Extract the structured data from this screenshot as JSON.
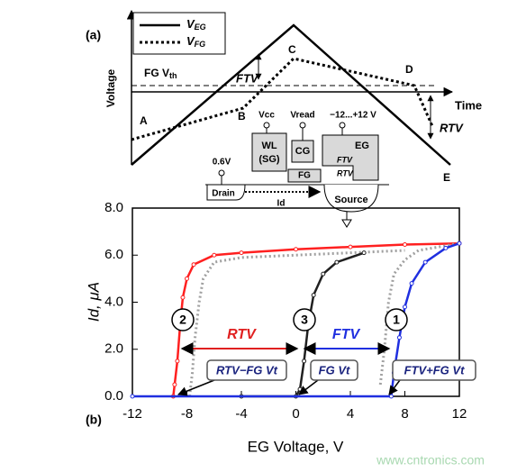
{
  "schematic": {
    "panel": "(a)",
    "y_label": "Voltage",
    "x_label": "Time",
    "legend": [
      {
        "symbol": "V",
        "subscript": "EG"
      },
      {
        "symbol": "V",
        "subscript": "FG"
      }
    ],
    "threshold": {
      "text": "FG V",
      "subscript": "th"
    },
    "ftv": "FTV",
    "rtv": "RTV",
    "points": [
      "A",
      "B",
      "C",
      "D",
      "E"
    ],
    "device": {
      "vcc": "Vcc",
      "vread": "Vread",
      "eg_range": "−12...+12 V",
      "wl": [
        "WL",
        "(SG)"
      ],
      "cg": "CG",
      "eg": "EG",
      "fg": "FG",
      "ftv": "FTV",
      "rtv": "RTV",
      "drain_v": "0.6V",
      "drain": "Drain",
      "id": "Id",
      "source": "Source"
    }
  },
  "chart_data": {
    "type": "line",
    "panel": "(b)",
    "x_label": "EG Voltage, V",
    "y_label": "Id, μA",
    "xlim": [
      -12,
      12
    ],
    "xticks": [
      -12,
      -8,
      -4,
      0,
      4,
      8,
      12
    ],
    "ylim": [
      0,
      8
    ],
    "yticks": [
      {
        "value": 0,
        "label": "0.0"
      },
      {
        "value": 2,
        "label": "2.0"
      },
      {
        "value": 4,
        "label": "4.0"
      },
      {
        "value": 6,
        "label": "6.0"
      },
      {
        "value": 8,
        "label": "8.0"
      }
    ],
    "series": [
      {
        "color": "#ff2020",
        "style": "solid",
        "x": [
          -9,
          -8.9,
          -8.7,
          -8.5,
          -8.3,
          -8,
          -7.5,
          -6,
          -4,
          0,
          4,
          8,
          12
        ],
        "values": [
          0,
          0.5,
          1.5,
          3,
          4.2,
          5,
          5.6,
          6,
          6.1,
          6.25,
          6.35,
          6.45,
          6.5
        ]
      },
      {
        "color": "#a0a0a0",
        "style": "dotted",
        "x": [
          -7.8,
          -7.6,
          -7.4,
          -7.1,
          -6.8,
          -6,
          -4,
          0,
          4,
          8
        ],
        "values": [
          0,
          1,
          2.5,
          4,
          5,
          5.7,
          5.9,
          6,
          6.1,
          6.2
        ]
      },
      {
        "color": "#202020",
        "style": "solid",
        "x": [
          -4,
          0,
          0.3,
          0.6,
          0.9,
          1.3,
          2,
          3,
          5
        ],
        "values": [
          0,
          0,
          0.3,
          1.5,
          3,
          4.3,
          5.2,
          5.7,
          6.1
        ]
      },
      {
        "color": "#a0a0a0",
        "style": "dotted",
        "x": [
          6.2,
          6.5,
          6.8,
          7.2,
          8,
          9,
          12
        ],
        "values": [
          0.5,
          2,
          4,
          5.2,
          5.8,
          6.2,
          6.5
        ]
      },
      {
        "color": "#1f2fe0",
        "style": "solid",
        "x": [
          -12,
          7,
          7.2,
          7.6,
          8,
          8.5,
          9.5,
          11,
          12
        ],
        "values": [
          0,
          0,
          1,
          2.5,
          3.8,
          4.8,
          5.7,
          6.3,
          6.5
        ]
      }
    ],
    "markers": [
      "2",
      "3",
      "1"
    ],
    "arrows": [
      "RTV",
      "FTV"
    ],
    "boxes": [
      "RTV−FG Vt",
      "FG Vt",
      "FTV+FG Vt"
    ]
  },
  "watermark": "www.cntronics.com"
}
